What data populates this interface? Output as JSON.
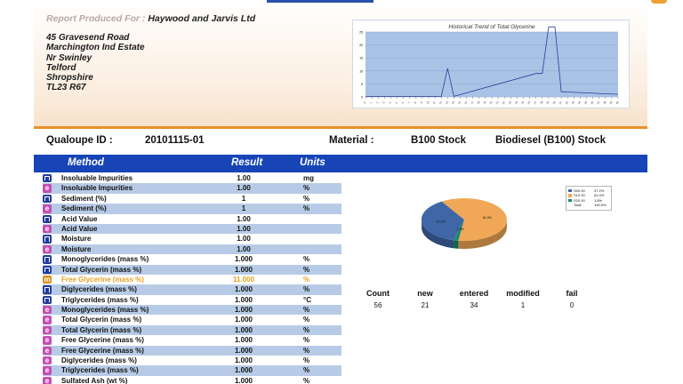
{
  "header": {
    "report_label": "Report Produced For :",
    "company": "Haywood and Jarvis Ltd",
    "address": [
      "45 Gravesend Road",
      "Marchington Ind Estate",
      "Nr Swinley",
      "Telford",
      "Shropshire",
      "TL23 R67"
    ]
  },
  "ids": {
    "qualoupe_label": "Qualoupe ID :",
    "qualoupe_value": "20101115-01",
    "material_label": "Material :",
    "material_code": "B100 Stock",
    "material_name": "Biodiesel (B100) Stock"
  },
  "table": {
    "headers": {
      "method": "Method",
      "result": "Result",
      "units": "Units"
    },
    "rows": [
      {
        "icon": "n",
        "method": "Insoluable Impurities",
        "result": "1.00",
        "unit": "mg"
      },
      {
        "icon": "e",
        "method": "Insoluable Impurities",
        "result": "1.00",
        "unit": "%"
      },
      {
        "icon": "n",
        "method": "Sediment (%)",
        "result": "1",
        "unit": "%"
      },
      {
        "icon": "e",
        "method": "Sediment (%)",
        "result": "1",
        "unit": "%"
      },
      {
        "icon": "n",
        "method": "Acid Value",
        "result": "1.00",
        "unit": ""
      },
      {
        "icon": "e",
        "method": "Acid Value",
        "result": "1.00",
        "unit": ""
      },
      {
        "icon": "n",
        "method": "Moisture",
        "result": "1.00",
        "unit": ""
      },
      {
        "icon": "e",
        "method": "Moisture",
        "result": "1.00",
        "unit": ""
      },
      {
        "icon": "n",
        "method": "Monoglycerides (mass %)",
        "result": "1.000",
        "unit": "%"
      },
      {
        "icon": "n",
        "method": "Total Glycerin (mass %)",
        "result": "1.000",
        "unit": "%"
      },
      {
        "icon": "m",
        "method": "Free Glycerine (mass %)",
        "result": "11.000",
        "unit": "%",
        "highlight": true
      },
      {
        "icon": "n",
        "method": "Diglycerides (mass %)",
        "result": "1.000",
        "unit": "%"
      },
      {
        "icon": "n",
        "method": "Triglycerides (mass %)",
        "result": "1.000",
        "unit": "°C"
      },
      {
        "icon": "e",
        "method": "Monoglycerides (mass %)",
        "result": "1.000",
        "unit": "%"
      },
      {
        "icon": "e",
        "method": "Total Glycerin (mass %)",
        "result": "1.000",
        "unit": "%"
      },
      {
        "icon": "e",
        "method": "Total Glycerin (mass %)",
        "result": "1.000",
        "unit": "%"
      },
      {
        "icon": "e",
        "method": "Free Glycerine (mass %)",
        "result": "1.000",
        "unit": "%"
      },
      {
        "icon": "e",
        "method": "Free Glycerine (mass %)",
        "result": "1.000",
        "unit": "%"
      },
      {
        "icon": "e",
        "method": "Diglycerides (mass %)",
        "result": "1.000",
        "unit": "%"
      },
      {
        "icon": "e",
        "method": "Triglycerides (mass %)",
        "result": "1.000",
        "unit": "%"
      },
      {
        "icon": "e",
        "method": "Sulfated Ash (wt %)",
        "result": "1.000",
        "unit": "%"
      }
    ]
  },
  "stats": {
    "headers": [
      "Count",
      "new",
      "entered",
      "modified",
      "fail"
    ],
    "values": [
      "56",
      "21",
      "34",
      "1",
      "0"
    ]
  },
  "colors": {
    "accent_blue": "#1745b8",
    "row_alt": "#b7cbe6",
    "orange": "#e8902a"
  },
  "chart_data": [
    {
      "type": "line",
      "title": "Historical Trend of Total Glycerine",
      "ylim": [
        0,
        25
      ],
      "yticks": [
        0,
        5,
        10,
        15,
        20,
        25
      ],
      "x_count": 40,
      "values": [
        0.2,
        0.2,
        0.2,
        0.2,
        0.2,
        0.2,
        0.2,
        0.2,
        0.2,
        0.2,
        0.2,
        0.2,
        0.2,
        0.2,
        0.2,
        0.2,
        0.2,
        0.2,
        0.2,
        0.2,
        0.2,
        0.2,
        0.2,
        0.2,
        0.2,
        0.2,
        0.2,
        0.2,
        0.2,
        0.2,
        0.2,
        0.2,
        0.2,
        0.2,
        0.2,
        0.2,
        0.2,
        0.2,
        0.2,
        0.2
      ],
      "points": [
        [
          0,
          0.2
        ],
        [
          12,
          0.2
        ],
        [
          13,
          11
        ],
        [
          14,
          0.2
        ],
        [
          27,
          9
        ],
        [
          28,
          9
        ],
        [
          29,
          27
        ],
        [
          30,
          27
        ],
        [
          31,
          2
        ],
        [
          40,
          1
        ]
      ],
      "grid": true
    },
    {
      "type": "pie",
      "legend_position": "right",
      "slices": [
        {
          "name": "S00 00",
          "value": 37.2,
          "label": "37.2%",
          "color": "#3f67a8"
        },
        {
          "name": "S10 00",
          "value": 61.0,
          "label": "61.0%",
          "color": "#f0a858"
        },
        {
          "name": "S20 00",
          "value": 1.8,
          "label": "1.8%",
          "color": "#1f8a6a"
        }
      ],
      "total_label": "Total",
      "total_value": "100.0%"
    }
  ]
}
